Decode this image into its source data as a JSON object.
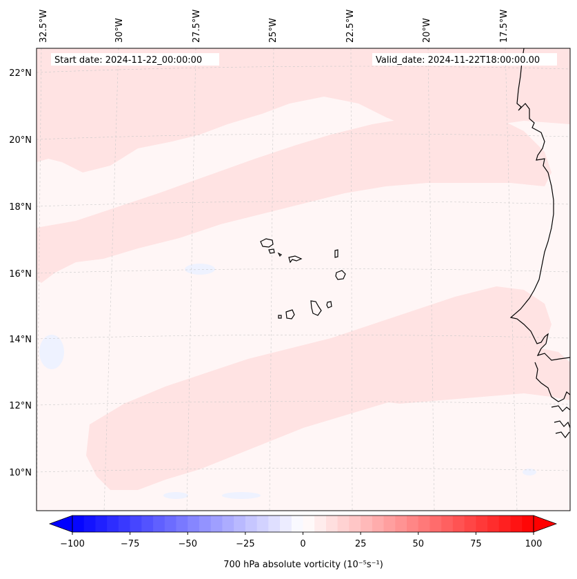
{
  "header": {
    "start_date": "Start date: 2024-11-22_00:00:00",
    "valid_date": "Valid_date: 2024-11-22T18:00:00.00"
  },
  "map": {
    "longitude_labels": [
      "32.5°W",
      "30°W",
      "27.5°W",
      "25°W",
      "22.5°W",
      "20°W",
      "17.5°W"
    ],
    "latitude_labels": [
      "22°N",
      "20°N",
      "18°N",
      "16°N",
      "14°N",
      "12°N",
      "10°N"
    ],
    "background_color": "#fff6f6",
    "positive_band_color": "#ffe3e3",
    "negative_patch_color": "#eef2ff",
    "coastline_color": "#000000",
    "gridline_color": "#c8c8c8"
  },
  "colorbar": {
    "tick_labels": [
      "−100",
      "−75",
      "−50",
      "−25",
      "0",
      "25",
      "50",
      "75",
      "100"
    ],
    "label": "700 hPa absolute vorticity (10⁻⁵s⁻¹)",
    "min_color": "#0000ff",
    "mid_color": "#ffffff",
    "max_color": "#ff0000"
  }
}
